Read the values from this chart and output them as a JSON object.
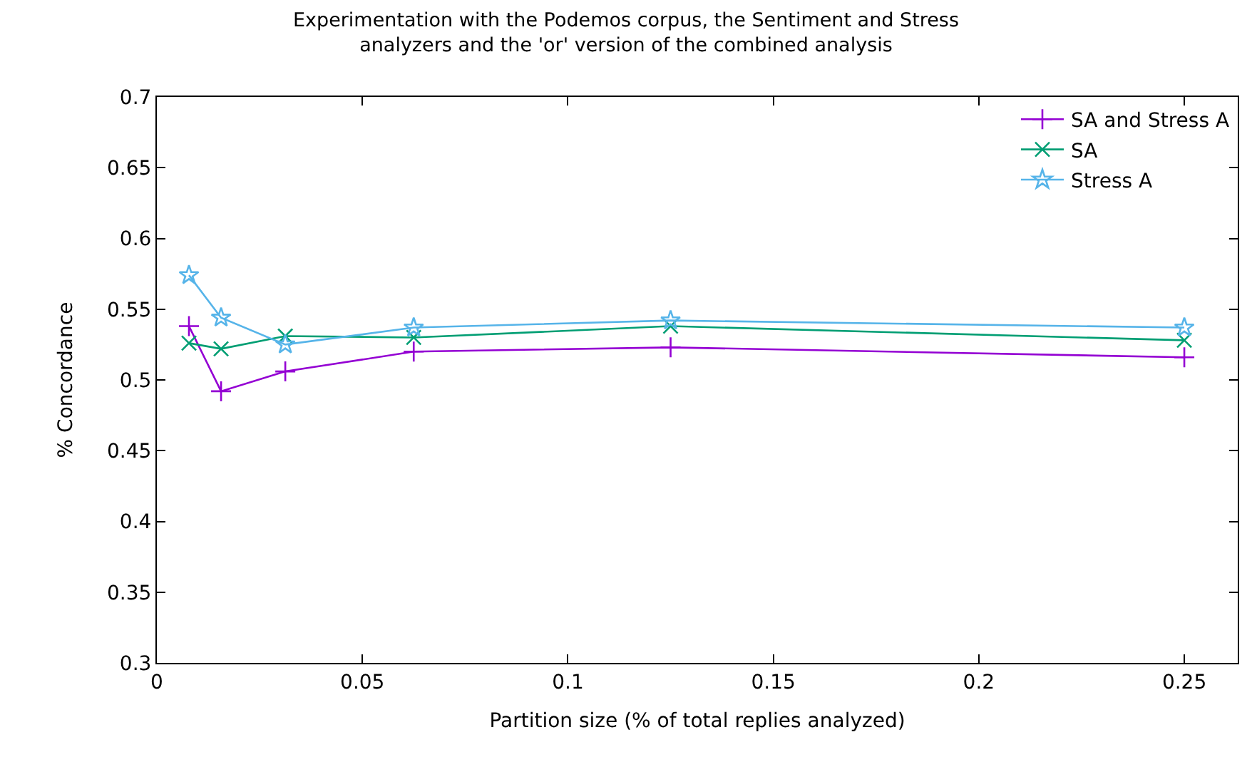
{
  "chart_data": {
    "type": "line",
    "title": "Experimentation with the Podemos corpus, the Sentiment and Stress\nanalyzers and the 'or' version of the combined analysis",
    "xlabel": "Partition size (% of total replies analyzed)",
    "ylabel": "% Concordance",
    "x": [
      0.0078125,
      0.015625,
      0.03125,
      0.0625,
      0.125,
      0.25
    ],
    "series": [
      {
        "name": "SA and Stress A",
        "color": "#9400d3",
        "marker": "cross",
        "values": [
          0.538,
          0.492,
          0.506,
          0.52,
          0.523,
          0.516
        ]
      },
      {
        "name": "SA",
        "color": "#009e73",
        "marker": "x",
        "values": [
          0.526,
          0.522,
          0.531,
          0.53,
          0.538,
          0.528
        ]
      },
      {
        "name": "Stress A",
        "color": "#56b4e9",
        "marker": "star",
        "values": [
          0.574,
          0.544,
          0.525,
          0.537,
          0.542,
          0.537
        ]
      }
    ],
    "xlim": [
      0,
      0.263
    ],
    "xticks": [
      0,
      0.05,
      0.1,
      0.15,
      0.2,
      0.25
    ],
    "ylim": [
      0.3,
      0.7
    ],
    "yticks": [
      0.3,
      0.35,
      0.4,
      0.45,
      0.5,
      0.55,
      0.6,
      0.65,
      0.7
    ],
    "grid": false,
    "legend": "top right",
    "line_style": "solid"
  }
}
